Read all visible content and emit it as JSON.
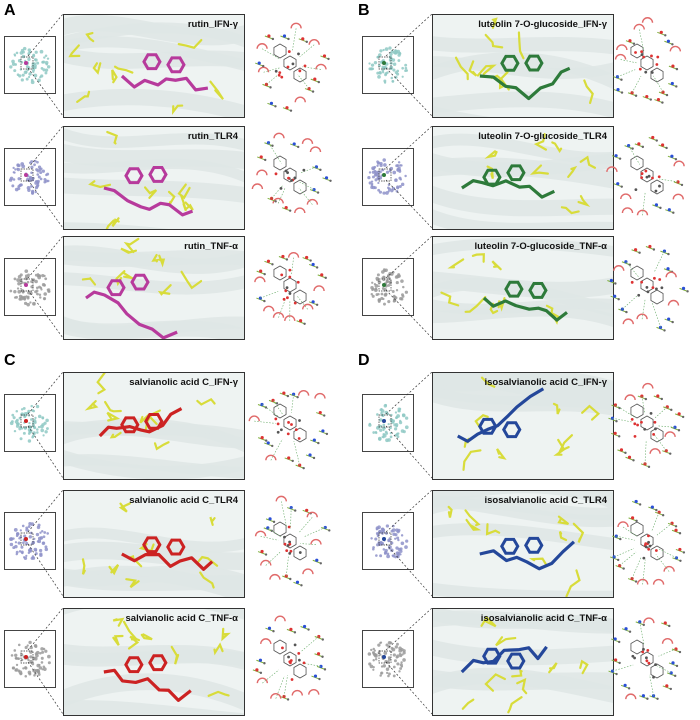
{
  "panels": [
    {
      "letter": "A",
      "rows": [
        {
          "label": "rutin_IFN-γ",
          "target": "IFN-γ"
        },
        {
          "label": "rutin_TLR4",
          "target": "TLR4"
        },
        {
          "label": "rutin_TNF-α",
          "target": "TNF-α"
        }
      ],
      "ligand_color": "#b73a9c"
    },
    {
      "letter": "B",
      "rows": [
        {
          "label": "luteolin 7-O-glucoside_IFN-γ",
          "target": "IFN-γ"
        },
        {
          "label": "luteolin 7-O-glucoside_TLR4",
          "target": "TLR4"
        },
        {
          "label": "luteolin 7-O-glucoside_TNF-α",
          "target": "TNF-α"
        }
      ],
      "ligand_color": "#2d7a3a"
    },
    {
      "letter": "C",
      "rows": [
        {
          "label": "salvianolic acid C_IFN-γ",
          "target": "IFN-γ"
        },
        {
          "label": "salvianolic acid C_TLR4",
          "target": "TLR4"
        },
        {
          "label": "salvianolic acid C_TNF-α",
          "target": "TNF-α"
        }
      ],
      "ligand_color": "#cc2222"
    },
    {
      "letter": "D",
      "rows": [
        {
          "label": "isosalvianolic acid C_IFN-γ",
          "target": "IFN-γ"
        },
        {
          "label": "isosalvianolic acid C_TLR4",
          "target": "TLR4"
        },
        {
          "label": "isosalvianolic acid C_TNF-α",
          "target": "TNF-α"
        }
      ],
      "ligand_color": "#24479a"
    }
  ],
  "colors": {
    "residue": "#d8dc3a",
    "protein_ifn": "#8fc9c4",
    "protein_tlr4": "#8e92c9",
    "protein_tnf": "#9a9a9a",
    "cartoon_bg": "#eef3f2"
  }
}
